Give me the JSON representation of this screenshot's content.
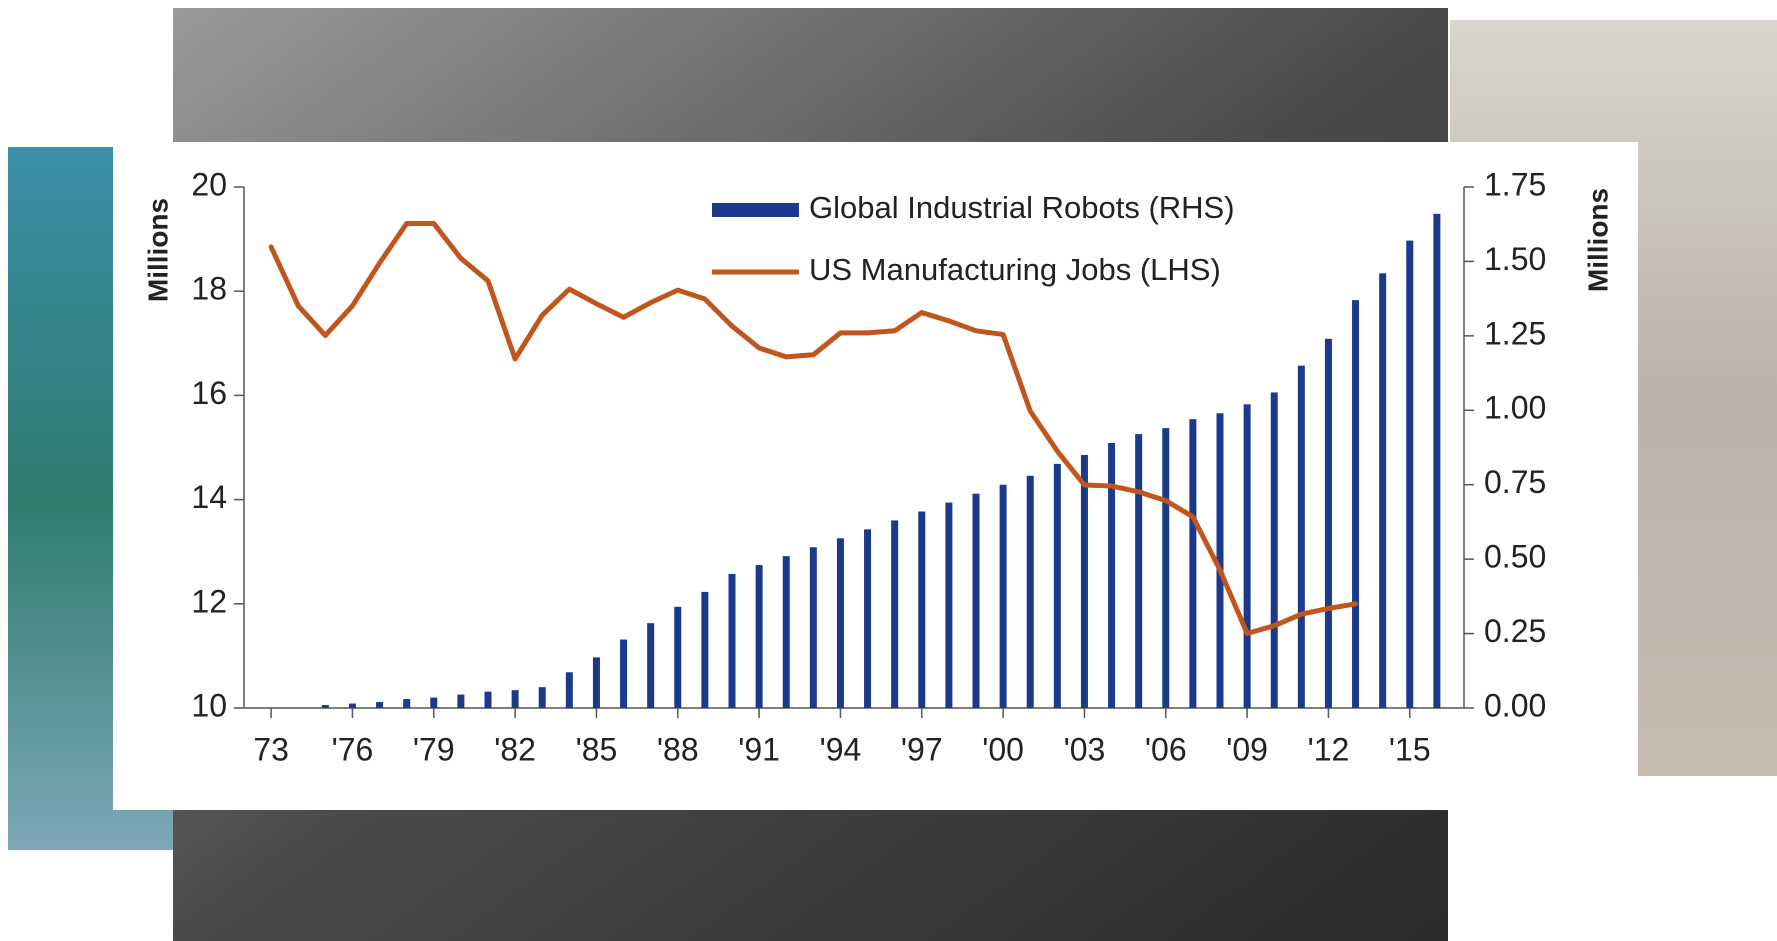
{
  "chart_data": {
    "type": "bar-line",
    "x": [
      1973,
      1974,
      1975,
      1976,
      1977,
      1978,
      1979,
      1980,
      1981,
      1982,
      1983,
      1984,
      1985,
      1986,
      1987,
      1988,
      1989,
      1990,
      1991,
      1992,
      1993,
      1994,
      1995,
      1996,
      1997,
      1998,
      1999,
      2000,
      2001,
      2002,
      2003,
      2004,
      2005,
      2006,
      2007,
      2008,
      2009,
      2010,
      2011,
      2012,
      2013,
      2014,
      2015,
      2016
    ],
    "xlim": [
      1972,
      2017
    ],
    "xticks": [
      {
        "value": 1973,
        "label": "73"
      },
      {
        "value": 1976,
        "label": "'76"
      },
      {
        "value": 1979,
        "label": "'79"
      },
      {
        "value": 1982,
        "label": "'82"
      },
      {
        "value": 1985,
        "label": "'85"
      },
      {
        "value": 1988,
        "label": "'88"
      },
      {
        "value": 1991,
        "label": "'91"
      },
      {
        "value": 1994,
        "label": "'94"
      },
      {
        "value": 1997,
        "label": "'97"
      },
      {
        "value": 2000,
        "label": "'00"
      },
      {
        "value": 2003,
        "label": "'03"
      },
      {
        "value": 2006,
        "label": "'06"
      },
      {
        "value": 2009,
        "label": "'09"
      },
      {
        "value": 2012,
        "label": "'12"
      },
      {
        "value": 2015,
        "label": "'15"
      }
    ],
    "ylim": [
      10,
      20
    ],
    "yticks": [
      10,
      12,
      14,
      16,
      18,
      20
    ],
    "ylabel": "Millions",
    "y2lim": [
      0,
      1.75
    ],
    "y2ticks": [
      {
        "value": 0,
        "label": "0.00"
      },
      {
        "value": 0.25,
        "label": "0.25"
      },
      {
        "value": 0.5,
        "label": "0.50"
      },
      {
        "value": 0.75,
        "label": "0.75"
      },
      {
        "value": 1,
        "label": "1.00"
      },
      {
        "value": 1.25,
        "label": "1.25"
      },
      {
        "value": 1.5,
        "label": "1.50"
      },
      {
        "value": 1.75,
        "label": "1.75"
      }
    ],
    "y2label": "Millions",
    "series": [
      {
        "name": "Global Industrial Robots (RHS)",
        "type": "bar",
        "axis": "y2",
        "color": "#1b3a8c",
        "values": [
          null,
          null,
          0.01,
          0.015,
          0.02,
          0.03,
          0.035,
          0.045,
          0.055,
          0.06,
          0.07,
          0.12,
          0.17,
          0.23,
          0.285,
          0.34,
          0.39,
          0.45,
          0.48,
          0.51,
          0.54,
          0.57,
          0.6,
          0.63,
          0.66,
          0.69,
          0.72,
          0.75,
          0.78,
          0.82,
          0.85,
          0.89,
          0.92,
          0.94,
          0.97,
          0.99,
          1.02,
          1.06,
          1.15,
          1.24,
          1.37,
          1.46,
          1.57,
          1.66
        ]
      },
      {
        "name": "US Manufacturing Jobs (LHS)",
        "type": "line",
        "axis": "y",
        "color": "#c0561e",
        "values": [
          18.85,
          17.72,
          17.15,
          17.72,
          18.54,
          19.3,
          19.3,
          18.63,
          18.2,
          16.7,
          17.54,
          18.04,
          17.76,
          17.5,
          17.78,
          18.02,
          17.85,
          17.33,
          16.91,
          16.74,
          16.78,
          17.2,
          17.2,
          17.24,
          17.59,
          17.43,
          17.24,
          17.17,
          15.7,
          14.93,
          14.28,
          14.26,
          14.15,
          13.98,
          13.67,
          12.65,
          11.43,
          11.58,
          11.8,
          11.91,
          12.0,
          null,
          null,
          null
        ]
      }
    ],
    "legend": "top-center"
  }
}
